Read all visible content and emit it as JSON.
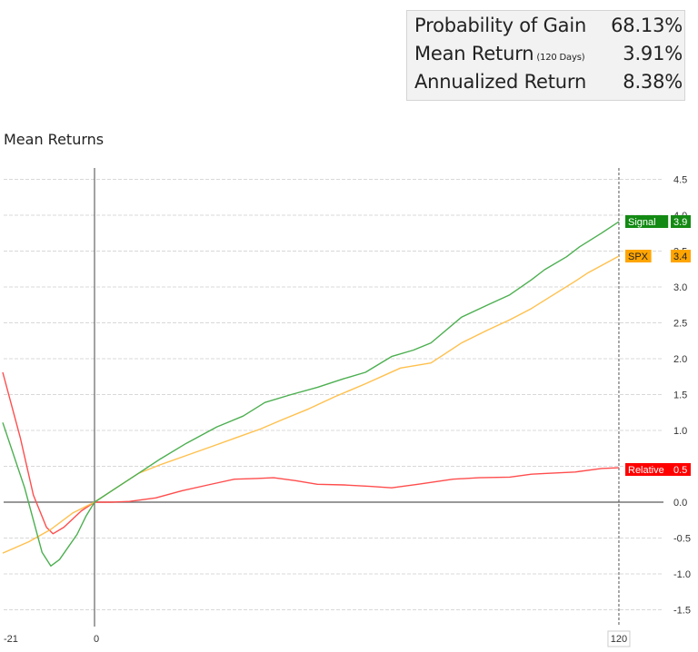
{
  "stats": {
    "rows": [
      {
        "label": "Probability of Gain",
        "sub": "",
        "value": "68.13%"
      },
      {
        "label": "Mean Return",
        "sub": "(120 Days)",
        "value": "3.91%"
      },
      {
        "label": "Annualized Return",
        "sub": "",
        "value": "8.38%"
      }
    ]
  },
  "chart": {
    "title": "Mean Returns",
    "x_ticks": [
      "-21",
      "0",
      "120"
    ],
    "y_ticks": [
      "4.5",
      "4.0",
      "3.5",
      "3.0",
      "2.5",
      "2.0",
      "1.5",
      "1.0",
      "0.5",
      "0.0",
      "-0.5",
      "-1.0",
      "-1.5"
    ],
    "series_tags": [
      {
        "name": "Signal",
        "value": "3.9",
        "color": "#138a13"
      },
      {
        "name": "SPX",
        "value": "3.4",
        "color": "#ffa500"
      },
      {
        "name": "Relative",
        "value": "0.5",
        "color": "#ff0000"
      }
    ]
  },
  "chart_data": {
    "type": "line",
    "title": "Mean Returns",
    "xlabel": "",
    "ylabel": "",
    "xlim": [
      -21,
      120
    ],
    "ylim": [
      -1.6,
      4.6
    ],
    "y_ticks": [
      -1.5,
      -1.0,
      -0.5,
      0.0,
      0.5,
      1.0,
      1.5,
      2.0,
      2.5,
      3.0,
      3.5,
      4.0,
      4.5
    ],
    "x_ticks": [
      -21,
      0,
      120
    ],
    "grid": true,
    "legend_position": "right (end-of-line tags)",
    "series": [
      {
        "name": "Signal",
        "color": "#4caf50",
        "end_value": 3.9,
        "points": [
          [
            -21,
            1.11
          ],
          [
            -16,
            0.2
          ],
          [
            -12,
            -0.7
          ],
          [
            -10,
            -0.89
          ],
          [
            -8,
            -0.8
          ],
          [
            -4,
            -0.45
          ],
          [
            -2,
            -0.2
          ],
          [
            0,
            0
          ],
          [
            5,
            0.2
          ],
          [
            10,
            0.4
          ],
          [
            15,
            0.6
          ],
          [
            21,
            0.82
          ],
          [
            28,
            1.05
          ],
          [
            34,
            1.2
          ],
          [
            39,
            1.39
          ],
          [
            45,
            1.5
          ],
          [
            51,
            1.6
          ],
          [
            57,
            1.72
          ],
          [
            62,
            1.81
          ],
          [
            68,
            2.03
          ],
          [
            73,
            2.12
          ],
          [
            77,
            2.22
          ],
          [
            84,
            2.58
          ],
          [
            90,
            2.75
          ],
          [
            95,
            2.89
          ],
          [
            100,
            3.1
          ],
          [
            103,
            3.24
          ],
          [
            108,
            3.42
          ],
          [
            111,
            3.56
          ],
          [
            116,
            3.75
          ],
          [
            120,
            3.91
          ]
        ]
      },
      {
        "name": "SPX",
        "color": "#ffc04d",
        "end_value": 3.4,
        "points": [
          [
            -21,
            -0.71
          ],
          [
            -15,
            -0.55
          ],
          [
            -10,
            -0.38
          ],
          [
            -5,
            -0.15
          ],
          [
            0,
            0
          ],
          [
            5,
            0.2
          ],
          [
            10,
            0.4
          ],
          [
            15,
            0.52
          ],
          [
            21,
            0.65
          ],
          [
            27,
            0.78
          ],
          [
            32,
            0.89
          ],
          [
            38,
            1.02
          ],
          [
            43,
            1.15
          ],
          [
            49,
            1.3
          ],
          [
            55,
            1.47
          ],
          [
            62,
            1.65
          ],
          [
            70,
            1.87
          ],
          [
            77,
            1.94
          ],
          [
            84,
            2.22
          ],
          [
            90,
            2.4
          ],
          [
            95,
            2.54
          ],
          [
            100,
            2.7
          ],
          [
            105,
            2.89
          ],
          [
            110,
            3.08
          ],
          [
            113,
            3.2
          ],
          [
            117,
            3.33
          ],
          [
            120,
            3.43
          ]
        ]
      },
      {
        "name": "Relative",
        "color": "#ff4d4d",
        "end_value": 0.5,
        "points": [
          [
            -21,
            1.81
          ],
          [
            -17,
            0.9
          ],
          [
            -14,
            0.1
          ],
          [
            -11,
            -0.35
          ],
          [
            -9.5,
            -0.44
          ],
          [
            -7,
            -0.35
          ],
          [
            -3,
            -0.12
          ],
          [
            0,
            0
          ],
          [
            4,
            0.0
          ],
          [
            8,
            0.01
          ],
          [
            14,
            0.06
          ],
          [
            20,
            0.16
          ],
          [
            26,
            0.24
          ],
          [
            32,
            0.32
          ],
          [
            37,
            0.33
          ],
          [
            41,
            0.34
          ],
          [
            46,
            0.3
          ],
          [
            51,
            0.25
          ],
          [
            57,
            0.24
          ],
          [
            63,
            0.22
          ],
          [
            68,
            0.2
          ],
          [
            74,
            0.25
          ],
          [
            82,
            0.32
          ],
          [
            88,
            0.34
          ],
          [
            95,
            0.35
          ],
          [
            100,
            0.39
          ],
          [
            103,
            0.4
          ],
          [
            110,
            0.42
          ],
          [
            116,
            0.47
          ],
          [
            120,
            0.48
          ]
        ]
      }
    ]
  }
}
